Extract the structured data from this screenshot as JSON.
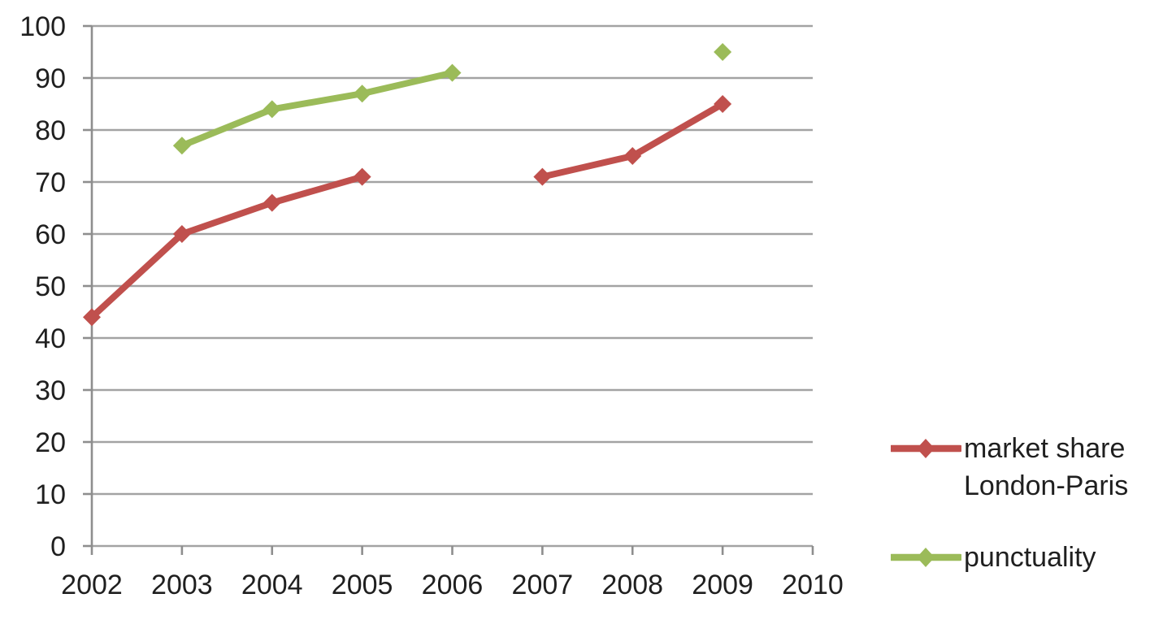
{
  "chart_data": {
    "type": "line",
    "title": "",
    "xlabel": "",
    "ylabel": "",
    "categories": [
      2002,
      2003,
      2004,
      2005,
      2006,
      2007,
      2008,
      2009,
      2010
    ],
    "x_tick_labels": [
      "2002",
      "2003",
      "2004",
      "2005",
      "2006",
      "2007",
      "2008",
      "2009",
      "2010"
    ],
    "y_tick_labels": [
      "0",
      "10",
      "20",
      "30",
      "40",
      "50",
      "60",
      "70",
      "80",
      "90",
      "100"
    ],
    "ylim": [
      0,
      100
    ],
    "y_tick_step": 10,
    "xlim": [
      2002,
      2010
    ],
    "grid": "horizontal",
    "series": [
      {
        "name": "market share London-Paris",
        "color": "#c0504d",
        "marker": "diamond",
        "values": [
          44,
          60,
          66,
          71,
          null,
          71,
          75,
          85,
          null
        ]
      },
      {
        "name": "punctuality",
        "color": "#9bbb59",
        "marker": "diamond",
        "values": [
          null,
          77,
          84,
          87,
          91,
          null,
          null,
          95,
          null
        ]
      }
    ],
    "legend": {
      "position": "right",
      "entries": [
        {
          "label_lines": [
            "market share",
            "London-Paris"
          ],
          "color": "#c0504d"
        },
        {
          "label_lines": [
            "punctuality"
          ],
          "color": "#9bbb59"
        }
      ]
    },
    "colors": {
      "gridline": "#a3a3a3",
      "axis": "#8e8e8e",
      "text": "#1f1f1f",
      "background": "#ffffff"
    }
  }
}
